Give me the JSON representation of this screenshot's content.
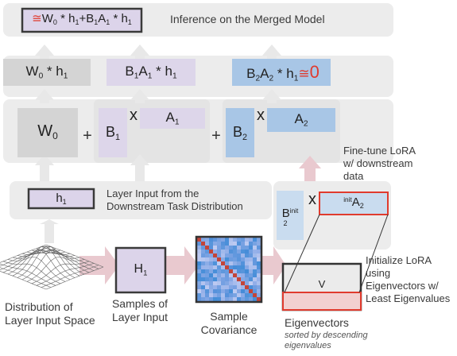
{
  "colors": {
    "panel_gray": "#ececec",
    "w0_gray": "#d4d4d4",
    "b1a1_purple": "#ddd6ea",
    "b2a2_blue": "#a8c6e6",
    "input_purple": "#dcd4ea",
    "red": "#e03b2e",
    "arrow_gray": "#e8e8e8",
    "arrow_pink": "#e9c9cf"
  },
  "top": {
    "formula": {
      "approx": "≅",
      "w": "W",
      "w_sub": "0",
      "mul1": " * h",
      "h_sub1": "1",
      "plus": "+B",
      "b_sub": "1",
      "a": "A",
      "a_sub": "1",
      "mul2": " * h",
      "h_sub2": "1"
    },
    "caption": "Inference on the Merged Model"
  },
  "products": {
    "w0h1": {
      "w": "W",
      "w_sub": "0",
      "rest": " * h",
      "h_sub": "1"
    },
    "b1a1h1": {
      "b": "B",
      "b_sub": "1",
      "a": "A",
      "a_sub": "1",
      "rest": " * h",
      "h_sub": "1"
    },
    "b2a2h1": {
      "b": "B",
      "b_sub": "2",
      "a": "A",
      "a_sub": "2",
      "rest": " * h",
      "h_sub": "1",
      "approx": "≅",
      "zero": "0"
    }
  },
  "blocks": {
    "w0": {
      "main": "W",
      "sub": "0"
    },
    "b1": {
      "main": "B",
      "sub": "1"
    },
    "a1": {
      "main": "A",
      "sub": "1"
    },
    "b2": {
      "main": "B",
      "sub": "2"
    },
    "a2": {
      "main": "A",
      "sub": "2"
    },
    "times": "x",
    "plus": "+"
  },
  "layer_input": {
    "h1": {
      "main": "h",
      "sub": "1"
    },
    "caption_line1": "Layer Input from the",
    "caption_line2": "Downstream Task Distribution"
  },
  "finetune": {
    "caption_line1": "Fine-tune LoRA",
    "caption_line2": "w/ downstream",
    "caption_line3": "data",
    "b2init": {
      "main": "B",
      "sub": "2",
      "sup": "init"
    },
    "a2init": {
      "pre": "init",
      "main": "A",
      "sub": "2"
    },
    "times": "x"
  },
  "bottom": {
    "distribution_line1": "Distribution of",
    "distribution_line2": "Layer Input Space",
    "samples": {
      "main": "H",
      "sub": "1"
    },
    "samples_line1": "Samples of",
    "samples_line2": "Layer Input",
    "covariance_line1": "Sample",
    "covariance_line2": "Covariance",
    "eigen_v": "V",
    "eigen_title": "Eigenvectors",
    "eigen_note_line1": "sorted by descending",
    "eigen_note_line2": "eigenvalues",
    "init_line1": "Initialize LoRA",
    "init_line2": "using",
    "init_line3": "Eigenvectors w/",
    "init_line4": "Least Eigenvalues"
  }
}
